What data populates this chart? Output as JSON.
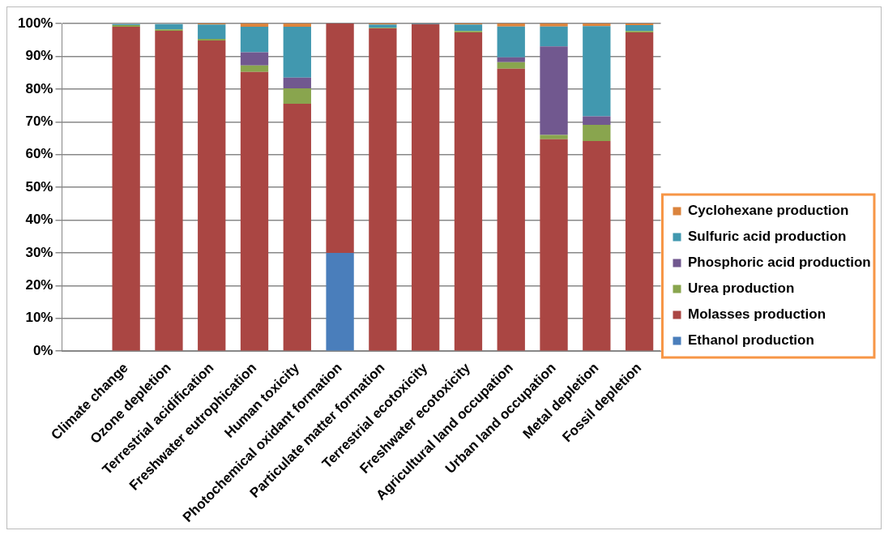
{
  "chart_data": {
    "type": "bar",
    "stacked": true,
    "grid": "y",
    "legend": "right",
    "categories": [
      null,
      "Climate change",
      "Ozone depletion",
      "Terrestrial acidification",
      "Freshwater eutrophication",
      "Human toxicity",
      "Photochemical oxidant formation",
      "Particulate matter formation",
      "Terrestrial ecotoxicity",
      "Freshwater ecotoxicity",
      "Agricultural land occupation",
      "Urban land occupation",
      "Metal depletion",
      "Fossil depletion"
    ],
    "ylim": [
      0,
      100
    ],
    "yticks": [
      {
        "value": 0,
        "label": "0%"
      },
      {
        "value": 10,
        "label": "10%"
      },
      {
        "value": 20,
        "label": "20%"
      },
      {
        "value": 30,
        "label": "30%"
      },
      {
        "value": 40,
        "label": "40%"
      },
      {
        "value": 50,
        "label": "50%"
      },
      {
        "value": 60,
        "label": "60%"
      },
      {
        "value": 70,
        "label": "70%"
      },
      {
        "value": 80,
        "label": "80%"
      },
      {
        "value": 90,
        "label": "90%"
      },
      {
        "value": 100,
        "label": "100%"
      }
    ],
    "series": [
      {
        "name": "Ethanol production",
        "color": "#4a7ebb",
        "values": [
          null,
          0,
          0,
          0,
          0,
          0,
          30,
          0,
          0,
          0,
          0,
          0,
          0,
          0
        ]
      },
      {
        "name": "Molasses production",
        "color": "#aa4643",
        "values": [
          null,
          99,
          97.8,
          94.8,
          85.2,
          75.5,
          70,
          98.5,
          99.8,
          97.3,
          86.2,
          64.7,
          64.1,
          97.3
        ]
      },
      {
        "name": "Urea production",
        "color": "#89a54e",
        "values": [
          null,
          0.5,
          0.4,
          0.5,
          2,
          4.7,
          0,
          0.2,
          0,
          0.4,
          2,
          1.3,
          5,
          0.4
        ]
      },
      {
        "name": "Phosphoric acid production",
        "color": "#71588f",
        "values": [
          null,
          0,
          0,
          0,
          4,
          3.3,
          0,
          0,
          0,
          0,
          1.5,
          27,
          2.6,
          0
        ]
      },
      {
        "name": "Sulfuric acid production",
        "color": "#4198af",
        "values": [
          null,
          0.3,
          1.6,
          4.4,
          7.8,
          15.5,
          0,
          1,
          0.2,
          2,
          9.4,
          6.1,
          27.5,
          1.8
        ]
      },
      {
        "name": "Cyclohexane production",
        "color": "#db843d",
        "values": [
          null,
          null,
          null,
          0.3,
          1,
          1,
          0,
          0.3,
          0,
          0.3,
          0.9,
          0.9,
          0.8,
          0.5
        ]
      }
    ]
  }
}
